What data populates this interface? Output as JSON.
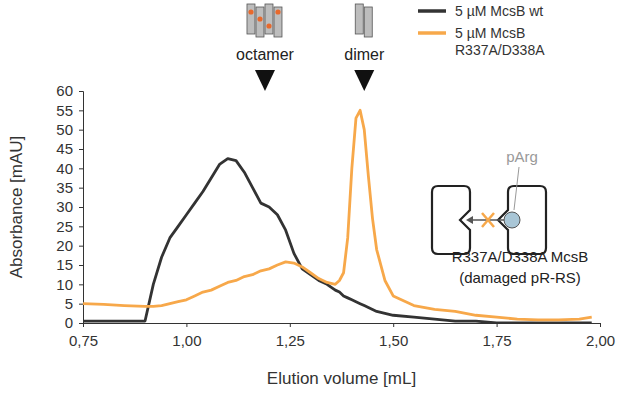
{
  "chart_data": {
    "type": "line",
    "x_label": "Elution volume [mL]",
    "y_label": "Absorbance [mAU]",
    "x": [
      0.75,
      0.8,
      0.85,
      0.9,
      0.92,
      0.94,
      0.96,
      0.98,
      1.0,
      1.02,
      1.04,
      1.06,
      1.08,
      1.1,
      1.12,
      1.14,
      1.16,
      1.18,
      1.2,
      1.22,
      1.24,
      1.26,
      1.28,
      1.3,
      1.32,
      1.34,
      1.36,
      1.37,
      1.38,
      1.39,
      1.4,
      1.41,
      1.42,
      1.43,
      1.44,
      1.45,
      1.46,
      1.48,
      1.5,
      1.55,
      1.6,
      1.65,
      1.7,
      1.75,
      1.8,
      1.85,
      1.9,
      1.95,
      1.98
    ],
    "series": [
      {
        "name": "5 µM McsB wt",
        "color": "#333333",
        "values": [
          0.5,
          0.5,
          0.5,
          0.5,
          10,
          17,
          22,
          25,
          28,
          31,
          34,
          37.5,
          41,
          42.5,
          42,
          39,
          35,
          31,
          30,
          28,
          24,
          18,
          14,
          12.5,
          11,
          10,
          8.5,
          8,
          7,
          6.5,
          6,
          5.5,
          5,
          4.5,
          4,
          3.5,
          3,
          2.5,
          2,
          1.5,
          1,
          0.5,
          0.5,
          0,
          0,
          0,
          0,
          0,
          0
        ]
      },
      {
        "name": "5 µM McsB R337A/D338A",
        "color": "#f7a84a",
        "values": [
          5,
          4.8,
          4.5,
          4.3,
          4.3,
          4.5,
          5,
          5.5,
          6,
          7,
          8,
          8.5,
          9.5,
          10.5,
          11,
          12,
          12.5,
          13.5,
          14,
          15,
          15.8,
          15.5,
          14.5,
          13,
          11.5,
          10.5,
          10,
          11,
          13,
          22,
          40,
          53,
          55,
          50,
          38,
          27,
          19,
          11,
          7,
          4.5,
          3.5,
          3,
          2,
          1.5,
          1,
          0.8,
          0.8,
          1,
          1.5
        ]
      }
    ],
    "xlim": [
      0.75,
      2.0
    ],
    "xticks": [
      {
        "value": 0.75,
        "label": "0,75"
      },
      {
        "value": 1.0,
        "label": "1,00"
      },
      {
        "value": 1.25,
        "label": "1,25"
      },
      {
        "value": 1.5,
        "label": "1,50"
      },
      {
        "value": 1.75,
        "label": "1,75"
      },
      {
        "value": 2.0,
        "label": "2,00"
      }
    ],
    "ylim": [
      0,
      60
    ],
    "yticks": [
      0,
      5,
      10,
      15,
      20,
      25,
      30,
      35,
      40,
      45,
      50,
      55,
      60
    ],
    "grid": false,
    "legend": "upper right",
    "annotations": [
      {
        "text": "octamer",
        "x": 1.19
      },
      {
        "text": "dimer",
        "x": 1.43
      },
      {
        "text": "pArg"
      },
      {
        "text": "R337A/D338A McsB"
      },
      {
        "text": "(damaged pR-RS)"
      }
    ]
  }
}
